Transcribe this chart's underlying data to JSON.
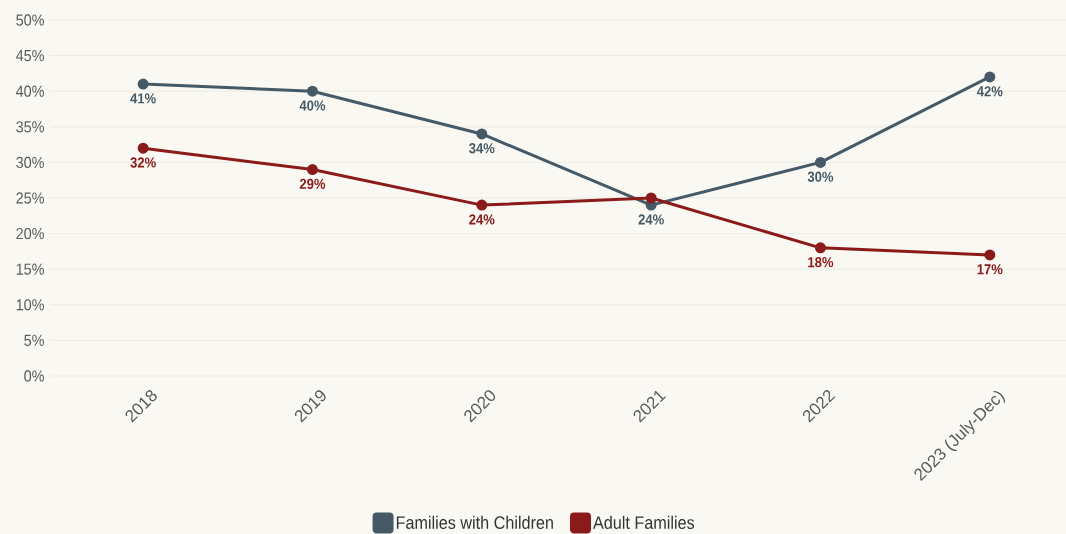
{
  "chart_data": {
    "type": "line",
    "categories": [
      "2018",
      "2019",
      "2020",
      "2021",
      "2022",
      "2023 (July-Dec)"
    ],
    "series": [
      {
        "name": "Families with Children",
        "color": "#455a66",
        "values": [
          41,
          40,
          34,
          24,
          30,
          42
        ],
        "value_labels": [
          "41%",
          "40%",
          "34%",
          "24%",
          "30%",
          "42%"
        ]
      },
      {
        "name": "Adult Families",
        "color": "#8b1a1a",
        "values": [
          32,
          29,
          24,
          25,
          18,
          17
        ],
        "value_labels": [
          "32%",
          "29%",
          "24%",
          null,
          "18%",
          "17%"
        ]
      }
    ],
    "ylim": [
      0,
      50
    ],
    "yticks": [
      {
        "value": 0,
        "label": "0%"
      },
      {
        "value": 5,
        "label": "5%"
      },
      {
        "value": 10,
        "label": "10%"
      },
      {
        "value": 15,
        "label": "15%"
      },
      {
        "value": 20,
        "label": "20%"
      },
      {
        "value": 25,
        "label": "25%"
      },
      {
        "value": 30,
        "label": "30%"
      },
      {
        "value": 35,
        "label": "35%"
      },
      {
        "value": 40,
        "label": "40%"
      },
      {
        "value": 45,
        "label": "45%"
      },
      {
        "value": 50,
        "label": "50%"
      }
    ],
    "grid": "y",
    "legend": "bottom",
    "marker": "circle",
    "line_style": "solid"
  }
}
